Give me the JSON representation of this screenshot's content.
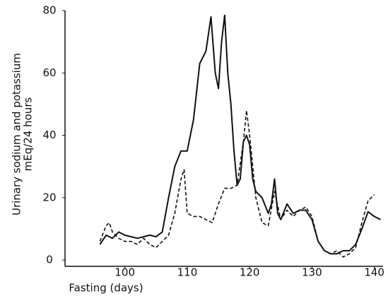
{
  "chart_data": {
    "type": "line",
    "ylabel": [
      "Urinary sodium and potassium",
      "mEq/24 hours"
    ],
    "xlabel": "Fasting (days)",
    "xlim": [
      90.4,
      141.4
    ],
    "xticks": [
      100,
      110,
      120,
      130,
      140
    ],
    "ylim": [
      -2,
      80
    ],
    "yticks": [
      0,
      20,
      40,
      60,
      80
    ],
    "series": [
      {
        "color": "#111111",
        "dash": false,
        "x": [
          96,
          97,
          98,
          99,
          100,
          101,
          102,
          103,
          104,
          105,
          106,
          107,
          108,
          109,
          110,
          111,
          112,
          113,
          113.8,
          114.5,
          115,
          115.5,
          116,
          116.5,
          117,
          117.5,
          118,
          118.5,
          119,
          119.5,
          120,
          120.5,
          121,
          122,
          123,
          123.5,
          124,
          124.5,
          125,
          126,
          127,
          128,
          129,
          130,
          131,
          132,
          133,
          134,
          135,
          136,
          137,
          138,
          139,
          140,
          141
        ],
        "values": [
          5,
          8,
          7,
          9,
          8,
          7.5,
          7,
          7.5,
          8,
          7.5,
          9,
          20,
          30,
          35,
          35,
          45,
          63,
          67,
          78,
          60,
          55,
          70,
          78.5,
          60,
          50,
          35,
          24,
          26,
          38,
          40,
          37,
          26,
          22,
          20,
          15,
          18,
          26,
          15,
          13,
          18,
          15,
          16,
          16,
          13,
          6,
          3,
          2,
          2,
          3,
          3,
          5,
          10,
          15.5,
          14,
          13
        ]
      },
      {
        "color": "#111111",
        "dash": true,
        "x": [
          96,
          97,
          97.5,
          98,
          99,
          100,
          101,
          102,
          103,
          104,
          105,
          106,
          107,
          108,
          109,
          109.5,
          110,
          111,
          112,
          113,
          114,
          115,
          116,
          117,
          118,
          119,
          119.5,
          120,
          121,
          122,
          123,
          124,
          125,
          126,
          127,
          128,
          129,
          130,
          131,
          132,
          133,
          134,
          135,
          136,
          137,
          138,
          139,
          140
        ],
        "values": [
          6,
          11,
          12,
          9,
          7,
          6,
          6,
          5,
          7,
          5,
          4,
          6,
          8,
          15,
          26,
          29,
          15,
          14,
          14,
          13,
          12,
          18,
          23,
          23,
          24,
          38,
          48,
          40,
          20,
          12,
          11,
          22,
          13,
          16,
          14,
          16,
          17,
          14,
          6,
          3,
          2,
          3,
          1,
          2,
          4,
          12,
          19,
          21
        ]
      }
    ]
  }
}
